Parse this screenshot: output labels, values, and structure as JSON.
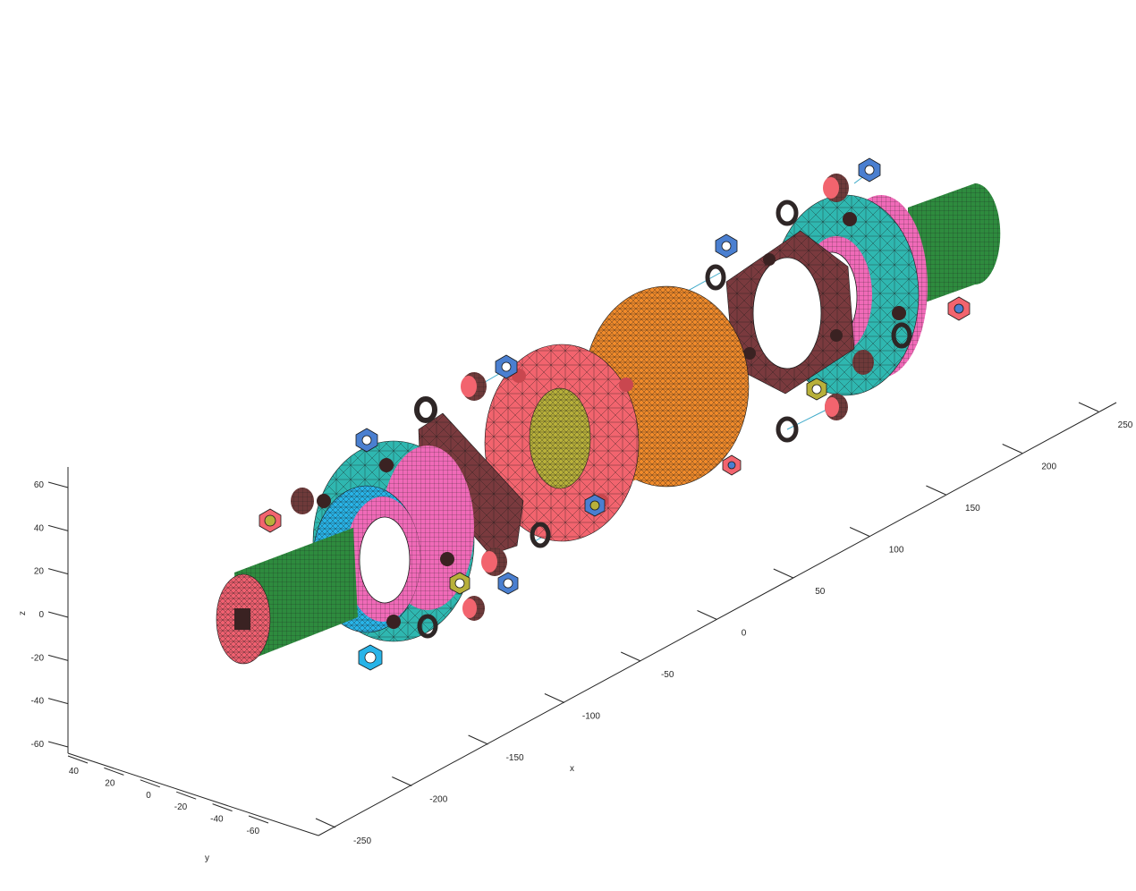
{
  "axes": {
    "x": {
      "label": "x",
      "ticks": [
        "-250",
        "-200",
        "-150",
        "-100",
        "-50",
        "0",
        "50",
        "100",
        "150",
        "200",
        "250"
      ]
    },
    "y": {
      "label": "y",
      "ticks": [
        "40",
        "20",
        "0",
        "-20",
        "-40",
        "-60"
      ]
    },
    "z": {
      "label": "z",
      "ticks": [
        "60",
        "40",
        "20",
        "0",
        "-20",
        "-40",
        "-60"
      ]
    }
  },
  "colors": {
    "axis": "#262626",
    "shaft": "#2e8b3e",
    "shaft_end": "#f06070",
    "flange_cyan": "#2fb7b0",
    "flange_blue": "#28b4e8",
    "hub_pink": "#f06ab8",
    "hub_salmon": "#f2646e",
    "hub_orange": "#f08a2a",
    "bore_olive": "#b8b03a",
    "fastener_brown": "#6e3a3a",
    "nut_blue": "#4a7fd0",
    "mesh": "#1a1a1a"
  }
}
